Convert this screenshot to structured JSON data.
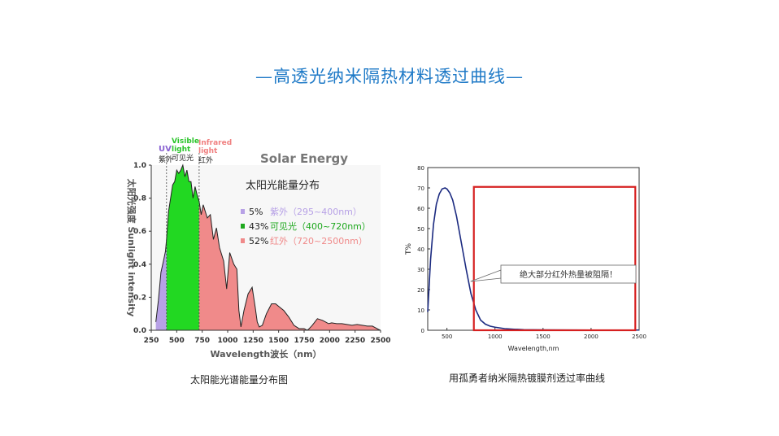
{
  "page_title": "—高透光纳米隔热材料透过曲线—",
  "chart_data": [
    {
      "type": "area",
      "heading": "Solar Energy",
      "title": "太阳光能量分布",
      "xlabel": "Wavelength波长（nm）",
      "ylabel": "太阳光强度 Sunlight intensity",
      "xlim": [
        250,
        2500
      ],
      "ylim": [
        0,
        1.0
      ],
      "x_ticks": [
        250,
        500,
        750,
        1000,
        1250,
        1500,
        1750,
        2000,
        2250,
        2500
      ],
      "y_ticks": [
        "0.0",
        "0.2",
        "0.4",
        "0.6",
        "0.8",
        "1.0"
      ],
      "bands": [
        {
          "name": "UV",
          "cn": "紫外",
          "range": [
            295,
            400
          ],
          "color": "#b7a1e6",
          "label_color": "#8a63d2"
        },
        {
          "name": "Visible light",
          "cn": "可见光",
          "range": [
            400,
            720
          ],
          "color": "#22d822",
          "label_color": "#2bc42b"
        },
        {
          "name": "Infrared light",
          "cn": "红外",
          "range": [
            720,
            2500
          ],
          "color": "#f08a8a",
          "label_color": "#f08080"
        }
      ],
      "legend": [
        {
          "percent": "5%",
          "text": "紫外（295~400nm）",
          "color": "#b7a1e6"
        },
        {
          "percent": "43%",
          "text": "可见光（400~720nm）",
          "color": "#1ea81e"
        },
        {
          "percent": "52%",
          "text": "红外（720~2500nm）",
          "color": "#f08a8a"
        }
      ],
      "band_dividers": [
        400,
        720
      ],
      "x": [
        295,
        320,
        345,
        370,
        390,
        400,
        420,
        440,
        460,
        480,
        500,
        520,
        540,
        560,
        580,
        600,
        620,
        640,
        660,
        680,
        700,
        720,
        740,
        760,
        780,
        800,
        830,
        860,
        890,
        920,
        940,
        960,
        990,
        1020,
        1060,
        1090,
        1110,
        1130,
        1160,
        1200,
        1240,
        1270,
        1290,
        1310,
        1340,
        1380,
        1430,
        1470,
        1510,
        1550,
        1600,
        1650,
        1700,
        1750,
        1780,
        1800,
        1830,
        1880,
        1930,
        1960,
        1990,
        2020,
        2070,
        2120,
        2170,
        2220,
        2270,
        2320,
        2370,
        2420,
        2450,
        2480,
        2500
      ],
      "values": [
        0.05,
        0.18,
        0.35,
        0.42,
        0.48,
        0.55,
        0.72,
        0.8,
        0.88,
        0.9,
        0.97,
        0.95,
        0.97,
        1.0,
        0.93,
        0.97,
        0.9,
        0.9,
        0.8,
        0.87,
        0.82,
        0.78,
        0.7,
        0.76,
        0.72,
        0.68,
        0.7,
        0.55,
        0.62,
        0.5,
        0.46,
        0.42,
        0.25,
        0.47,
        0.4,
        0.37,
        0.12,
        0.02,
        0.12,
        0.22,
        0.26,
        0.14,
        0.05,
        0.02,
        0.03,
        0.1,
        0.16,
        0.16,
        0.14,
        0.12,
        0.08,
        0.03,
        0.01,
        0.01,
        0.0,
        0.01,
        0.03,
        0.07,
        0.06,
        0.05,
        0.04,
        0.045,
        0.04,
        0.04,
        0.035,
        0.03,
        0.035,
        0.03,
        0.025,
        0.025,
        0.015,
        0.005,
        0.0
      ],
      "caption": "太阳能光谱能量分布图"
    },
    {
      "type": "line",
      "xlabel": "Wavelength,nm",
      "ylabel": "T%",
      "xlim": [
        300,
        2500
      ],
      "ylim": [
        0,
        80
      ],
      "x_ticks": [
        500,
        1000,
        1500,
        2000,
        2500
      ],
      "y_ticks": [
        0,
        10,
        20,
        30,
        40,
        50,
        60,
        70,
        80
      ],
      "x": [
        300,
        330,
        360,
        390,
        420,
        450,
        480,
        500,
        530,
        560,
        600,
        650,
        700,
        750,
        800,
        850,
        900,
        950,
        1000,
        1100,
        1200,
        1300,
        1500,
        2000,
        2500
      ],
      "values": [
        9,
        35,
        52,
        62,
        67,
        69.5,
        70,
        69.5,
        67.5,
        64,
        56,
        43,
        30,
        18,
        10,
        5,
        3,
        2,
        1.5,
        0.8,
        0.5,
        0.3,
        0.2,
        0.1,
        0.1
      ],
      "highlight_box": {
        "x_range": [
          780,
          2460
        ],
        "y_range": [
          0,
          70.5
        ]
      },
      "annotation": {
        "text": "绝大部分红外热量被阻隔！",
        "target_x": 780,
        "target_y": 24
      },
      "caption": "用孤勇者纳米隔热镀膜剂透过率曲线"
    }
  ]
}
